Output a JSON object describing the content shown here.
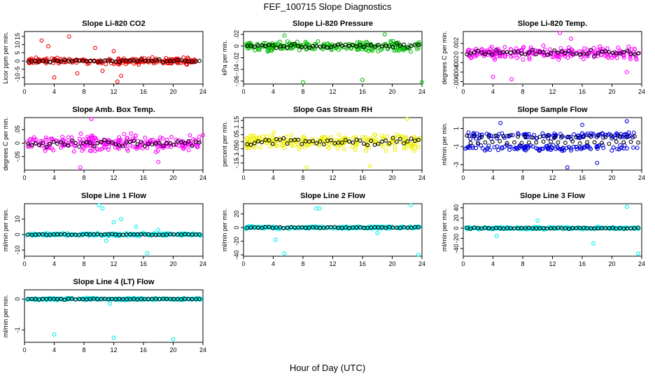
{
  "figure": {
    "title": "FEF_100715 Slope Diagnostics",
    "xlabel": "Hour of Day (UTC)"
  },
  "chart_data": [
    {
      "type": "scatter",
      "title": "Slope Li-820 CO2",
      "ylabel": "Licor ppm per min.",
      "color": "#ee0000",
      "xlim": [
        0,
        24
      ],
      "xticks": [
        0,
        4,
        8,
        12,
        16,
        20,
        24
      ],
      "ylim": [
        -14,
        18
      ],
      "yticks": [
        -10,
        -5,
        0,
        5,
        10,
        15
      ],
      "scatter_center": 0,
      "scatter_spread": 2.5,
      "outliers": [
        [
          2.3,
          12.5
        ],
        [
          3.2,
          9
        ],
        [
          6,
          15
        ],
        [
          7.1,
          -7.5
        ],
        [
          4,
          -10
        ],
        [
          9.5,
          8
        ],
        [
          12.5,
          -12.5
        ],
        [
          13,
          -9
        ],
        [
          12,
          6
        ],
        [
          10.5,
          -6
        ]
      ]
    },
    {
      "type": "scatter",
      "title": "Slope Li-820 Pressure",
      "ylabel": "kPa per min.",
      "color": "#00bb00",
      "xlim": [
        0,
        24
      ],
      "xticks": [
        0,
        4,
        8,
        12,
        16,
        20,
        24
      ],
      "ylim": [
        -0.065,
        0.025
      ],
      "yticks": [
        -0.06,
        -0.04,
        -0.02,
        0,
        0.02
      ],
      "scatter_center": 0,
      "scatter_spread": 0.012,
      "outliers": [
        [
          8,
          -0.062
        ],
        [
          16,
          -0.058
        ],
        [
          24,
          -0.062
        ],
        [
          5.5,
          0.018
        ],
        [
          19,
          0.02
        ]
      ]
    },
    {
      "type": "scatter",
      "title": "Slope Li-820 Temp.",
      "ylabel": "degrees C per min.",
      "color": "#ff00ff",
      "xlim": [
        0,
        24
      ],
      "xticks": [
        0,
        4,
        8,
        12,
        16,
        20,
        24
      ],
      "ylim": [
        -0.0065,
        0.0045
      ],
      "yticks": [
        -0.006,
        -0.004,
        -0.002,
        0,
        0.002
      ],
      "scatter_center": 0,
      "scatter_spread": 0.0018,
      "outliers": [
        [
          13,
          0.0042
        ],
        [
          6.5,
          -0.0055
        ],
        [
          4,
          -0.005
        ],
        [
          14.5,
          0.003
        ],
        [
          22,
          -0.004
        ]
      ]
    },
    {
      "type": "scatter",
      "title": "Slope Amb. Box Temp.",
      "ylabel": "degrees C per min.",
      "color": "#ff00ff",
      "xlim": [
        0,
        24
      ],
      "xticks": [
        0,
        4,
        8,
        12,
        16,
        20,
        24
      ],
      "ylim": [
        -0.1,
        0.095
      ],
      "yticks": [
        -0.05,
        0,
        0.05
      ],
      "scatter_center": 0,
      "scatter_spread": 0.045,
      "outliers": [
        [
          7.5,
          -0.09
        ],
        [
          9,
          0.09
        ],
        [
          18,
          -0.07
        ],
        [
          24,
          0.03
        ]
      ]
    },
    {
      "type": "scatter",
      "title": "Slope Gas Stream RH",
      "ylabel": "percent per min.",
      "color": "#eeee00",
      "xlim": [
        0,
        24
      ],
      "xticks": [
        0,
        4,
        8,
        12,
        16,
        20,
        24
      ],
      "ylim": [
        -0.2,
        0.17
      ],
      "yticks": [
        -0.15,
        -0.1,
        -0.05,
        0,
        0.05,
        0.1,
        0.15
      ],
      "scatter_center": 0,
      "scatter_spread": 0.08,
      "outliers": [
        [
          8.5,
          -0.18
        ],
        [
          17,
          -0.17
        ],
        [
          22,
          0.16
        ]
      ]
    },
    {
      "type": "scatter",
      "title": "Slope Sample Flow",
      "ylabel": "ml/min per min.",
      "color": "#0000dd",
      "xlim": [
        0,
        24
      ],
      "xticks": [
        0,
        4,
        8,
        12,
        16,
        20,
        24
      ],
      "ylim": [
        -3.6,
        2.2
      ],
      "yticks": [
        -3,
        -1,
        1
      ],
      "bands": [
        0.2,
        -1.1
      ],
      "scatter_spread": 0.45,
      "outliers": [
        [
          14,
          -3.3
        ],
        [
          5,
          1.6
        ],
        [
          18,
          -2.8
        ],
        [
          22,
          1.8
        ],
        [
          16,
          1.4
        ]
      ]
    },
    {
      "type": "scatter",
      "title": "Slope Line 1 Flow",
      "ylabel": "ml/min per min.",
      "color": "#00eeee",
      "xlim": [
        0,
        24
      ],
      "xticks": [
        0,
        4,
        8,
        12,
        16,
        20,
        24
      ],
      "ylim": [
        -14,
        20
      ],
      "yticks": [
        -10,
        0,
        10
      ],
      "scatter_center": 0,
      "scatter_spread": 1.2,
      "outliers": [
        [
          10,
          19
        ],
        [
          10.5,
          17
        ],
        [
          16.5,
          -12
        ],
        [
          15,
          5
        ],
        [
          12,
          8
        ],
        [
          13,
          10
        ],
        [
          11,
          -4
        ],
        [
          18,
          3
        ]
      ]
    },
    {
      "type": "scatter",
      "title": "Slope Line 2 Flow",
      "ylabel": "ml/min per min.",
      "color": "#00eeee",
      "xlim": [
        0,
        24
      ],
      "xticks": [
        0,
        4,
        8,
        12,
        16,
        20,
        24
      ],
      "ylim": [
        -42,
        35
      ],
      "yticks": [
        -40,
        -20,
        0,
        20
      ],
      "scatter_center": 0,
      "scatter_spread": 2.5,
      "outliers": [
        [
          5.5,
          -38
        ],
        [
          9.8,
          28
        ],
        [
          10.2,
          28
        ],
        [
          22.5,
          33
        ],
        [
          23.5,
          -40
        ],
        [
          4.3,
          -18
        ],
        [
          18,
          -8
        ]
      ]
    },
    {
      "type": "scatter",
      "title": "Slope Line 3 Flow",
      "ylabel": "ml/min per min.",
      "color": "#00eeee",
      "xlim": [
        0,
        24
      ],
      "xticks": [
        0,
        4,
        8,
        12,
        16,
        20,
        24
      ],
      "ylim": [
        -55,
        48
      ],
      "yticks": [
        -40,
        -20,
        0,
        20,
        40
      ],
      "scatter_center": 0,
      "scatter_spread": 3,
      "outliers": [
        [
          22,
          42
        ],
        [
          23.5,
          -50
        ],
        [
          17.5,
          -30
        ],
        [
          4.5,
          -15
        ],
        [
          10,
          15
        ]
      ]
    },
    {
      "type": "scatter",
      "title": "Slope Line 4 (LT) Flow",
      "ylabel": "ml/min per min.",
      "color": "#00eeee",
      "xlim": [
        0,
        24
      ],
      "xticks": [
        0,
        4,
        8,
        12,
        16,
        20,
        24
      ],
      "ylim": [
        -1.4,
        0.3
      ],
      "yticks": [
        -1,
        0
      ],
      "scatter_center": 0,
      "scatter_spread": 0.05,
      "outliers": [
        [
          4,
          -1.15
        ],
        [
          12,
          -1.25
        ],
        [
          20,
          -1.3
        ],
        [
          11.5,
          -0.15
        ]
      ]
    }
  ]
}
